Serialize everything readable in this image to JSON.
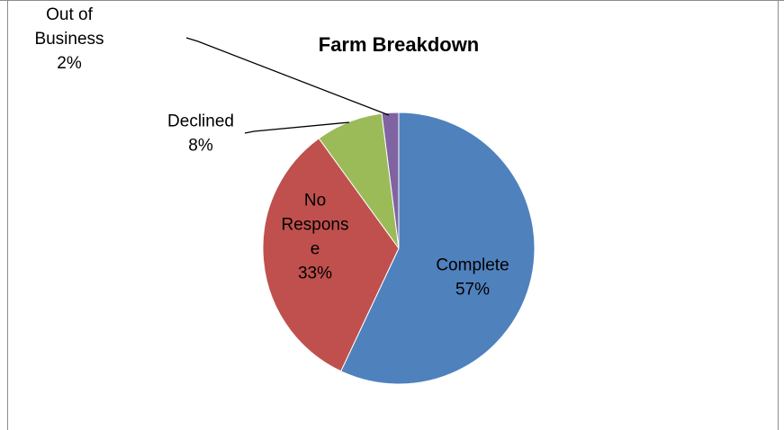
{
  "chart_data": {
    "type": "pie",
    "title": "Farm Breakdown",
    "slices": [
      {
        "label_lines": [
          "Complete"
        ],
        "value": 57,
        "value_label": "57%",
        "color": "#4F81BD"
      },
      {
        "label_lines": [
          "No",
          "Respons",
          "e"
        ],
        "value": 33,
        "value_label": "33%",
        "color": "#C0504D"
      },
      {
        "label_lines": [
          "Declined"
        ],
        "value": 8,
        "value_label": "8%",
        "color": "#9BBB59"
      },
      {
        "label_lines": [
          "Out of",
          "Business"
        ],
        "value": 2,
        "value_label": "2%",
        "color": "#8064A2"
      }
    ],
    "legend": "none",
    "data_labels": "category name and percentage"
  }
}
